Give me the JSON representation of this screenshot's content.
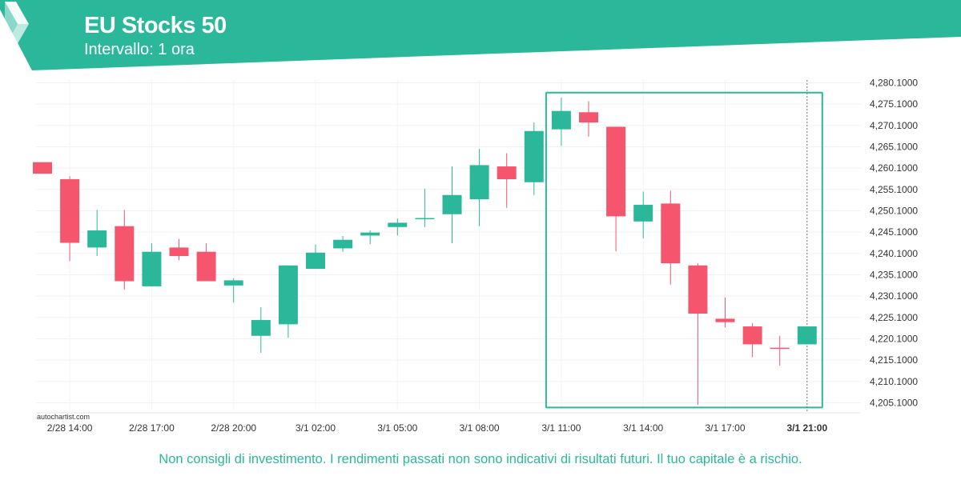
{
  "header": {
    "title": "EU Stocks 50",
    "subtitle": "Intervallo: 1 ora",
    "brand_color": "#2bb89a"
  },
  "watermark": "autochartist.com",
  "disclaimer": "Non consigli di investimento. I rendimenti passati non sono indicativi di risultati futuri. Il tuo capitale è a rischio.",
  "chart_data": {
    "type": "candlestick",
    "up_color": "#2bb89a",
    "down_color": "#f5566e",
    "ylim": [
      4202,
      4281
    ],
    "yticks": [
      4205.1,
      4210.1,
      4215.1,
      4220.1,
      4225.1,
      4230.1,
      4235.1,
      4240.1,
      4245.1,
      4250.1,
      4255.1,
      4260.1,
      4265.1,
      4270.1,
      4275.1,
      4280.1
    ],
    "ytick_labels": [
      "4,205.1000",
      "4,210.1000",
      "4,215.1000",
      "4,220.1000",
      "4,225.1000",
      "4,230.1000",
      "4,235.1000",
      "4,240.1000",
      "4,245.1000",
      "4,250.1000",
      "4,255.1000",
      "4,260.1000",
      "4,265.1000",
      "4,270.1000",
      "4,275.1000",
      "4,280.1000"
    ],
    "xtick_labels": [
      {
        "label": "2/28 14:00",
        "index": 1
      },
      {
        "label": "2/28 17:00",
        "index": 4
      },
      {
        "label": "2/28 20:00",
        "index": 7
      },
      {
        "label": "3/1 02:00",
        "index": 10
      },
      {
        "label": "3/1 05:00",
        "index": 13
      },
      {
        "label": "3/1 08:00",
        "index": 16
      },
      {
        "label": "3/1 11:00",
        "index": 19
      },
      {
        "label": "3/1 14:00",
        "index": 22
      },
      {
        "label": "3/1 17:00",
        "index": 25
      },
      {
        "label": "3/1 21:00",
        "index": 28,
        "bold": true
      }
    ],
    "candles": [
      {
        "o": 4261.5,
        "h": 4261.5,
        "l": 4258.8,
        "c": 4258.8
      },
      {
        "o": 4257.5,
        "h": 4258.2,
        "l": 4238.3,
        "c": 4242.6
      },
      {
        "o": 4241.5,
        "h": 4250.3,
        "l": 4239.5,
        "c": 4245.5
      },
      {
        "o": 4246.5,
        "h": 4250.3,
        "l": 4231.6,
        "c": 4233.6
      },
      {
        "o": 4232.4,
        "h": 4242.5,
        "l": 4232.4,
        "c": 4240.5
      },
      {
        "o": 4241.5,
        "h": 4243.5,
        "l": 4238.5,
        "c": 4239.5
      },
      {
        "o": 4240.5,
        "h": 4242.5,
        "l": 4233.6,
        "c": 4233.6
      },
      {
        "o": 4232.6,
        "h": 4234.3,
        "l": 4228.6,
        "c": 4233.8
      },
      {
        "o": 4220.8,
        "h": 4227.5,
        "l": 4216.8,
        "c": 4224.5
      },
      {
        "o": 4223.5,
        "h": 4237.3,
        "l": 4220.3,
        "c": 4237.3
      },
      {
        "o": 4236.5,
        "h": 4242.2,
        "l": 4236.5,
        "c": 4240.3
      },
      {
        "o": 4241.3,
        "h": 4244.2,
        "l": 4240.5,
        "c": 4243.3
      },
      {
        "o": 4244.3,
        "h": 4245.5,
        "l": 4242.3,
        "c": 4245.0
      },
      {
        "o": 4246.3,
        "h": 4248.3,
        "l": 4244.3,
        "c": 4247.3
      },
      {
        "o": 4248.2,
        "h": 4255.3,
        "l": 4246.3,
        "c": 4248.4
      },
      {
        "o": 4249.3,
        "h": 4260.5,
        "l": 4242.5,
        "c": 4253.8
      },
      {
        "o": 4252.8,
        "h": 4264.6,
        "l": 4246.5,
        "c": 4260.8
      },
      {
        "o": 4260.5,
        "h": 4263.6,
        "l": 4250.8,
        "c": 4257.5
      },
      {
        "o": 4256.8,
        "h": 4270.8,
        "l": 4253.8,
        "c": 4268.8
      },
      {
        "o": 4269.2,
        "h": 4276.6,
        "l": 4265.3,
        "c": 4273.5
      },
      {
        "o": 4273.2,
        "h": 4275.8,
        "l": 4267.5,
        "c": 4270.8
      },
      {
        "o": 4269.8,
        "h": 4269.8,
        "l": 4240.6,
        "c": 4248.8
      },
      {
        "o": 4247.6,
        "h": 4254.6,
        "l": 4243.6,
        "c": 4251.5
      },
      {
        "o": 4251.8,
        "h": 4254.8,
        "l": 4232.8,
        "c": 4237.8
      },
      {
        "o": 4237.3,
        "h": 4237.8,
        "l": 4204.6,
        "c": 4226.0
      },
      {
        "o": 4224.8,
        "h": 4229.8,
        "l": 4222.8,
        "c": 4224.0
      },
      {
        "o": 4223.0,
        "h": 4223.8,
        "l": 4215.8,
        "c": 4218.8
      },
      {
        "o": 4218.0,
        "h": 4220.8,
        "l": 4213.8,
        "c": 4217.8
      },
      {
        "o": 4218.8,
        "h": 4223.0,
        "l": 4218.8,
        "c": 4223.0
      }
    ],
    "highlight_box": {
      "from_index": 19,
      "to_index": 28,
      "low": 4204.0,
      "high": 4277.8,
      "color": "#2bb89a"
    },
    "grid": true
  }
}
